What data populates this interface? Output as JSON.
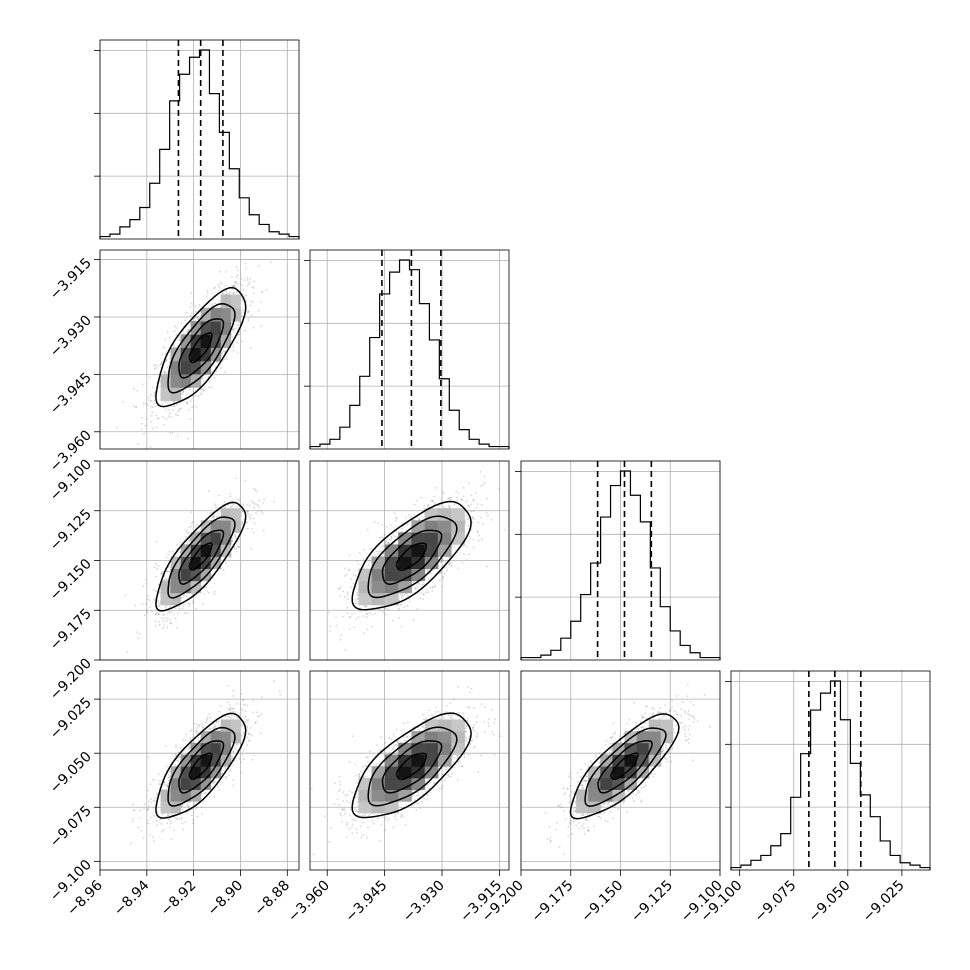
{
  "chart_data": {
    "type": "corner",
    "grid": true,
    "n_params": 4,
    "params": [
      {
        "center": -8.917,
        "sigma": 0.0095,
        "range": [
          -8.96,
          -8.875
        ],
        "ticks": [
          -8.96,
          -8.94,
          -8.92,
          -8.9,
          -8.88
        ],
        "tick_labels": [
          "−8.96",
          "−8.94",
          "−8.92",
          "−8.90",
          "−8.88"
        ],
        "quantiles": [
          -8.9265,
          -8.917,
          -8.9075
        ]
      },
      {
        "center": -3.938,
        "sigma": 0.0077,
        "range": [
          -3.9645,
          -3.9125
        ],
        "ticks": [
          -3.96,
          -3.945,
          -3.93,
          -3.915
        ],
        "tick_labels": [
          "−3.960",
          "−3.945",
          "−3.930",
          "−3.915"
        ],
        "quantiles": [
          -3.9457,
          -3.938,
          -3.9303
        ]
      },
      {
        "center": -9.148,
        "sigma": 0.0135,
        "range": [
          -9.2,
          -9.1
        ],
        "ticks": [
          -9.2,
          -9.175,
          -9.15,
          -9.125,
          -9.1
        ],
        "tick_labels": [
          "−9.200",
          "−9.175",
          "−9.150",
          "−9.125",
          "−9.100"
        ],
        "quantiles": [
          -9.1615,
          -9.148,
          -9.1345
        ]
      },
      {
        "center": -9.056,
        "sigma": 0.012,
        "range": [
          -9.104,
          -9.012
        ],
        "ticks": [
          -9.1,
          -9.075,
          -9.05,
          -9.025
        ],
        "tick_labels": [
          "−9.100",
          "−9.075",
          "−9.050",
          "−9.025"
        ],
        "quantiles": [
          -9.068,
          -9.056,
          -9.044
        ]
      }
    ],
    "histograms": [
      [
        1,
        2,
        5,
        8,
        13,
        23,
        37,
        57,
        68,
        75,
        78,
        60,
        44,
        29,
        17,
        10,
        6,
        3,
        2,
        1
      ],
      [
        1,
        2,
        4,
        9,
        18,
        30,
        46,
        64,
        73,
        78,
        74,
        60,
        45,
        29,
        16,
        8,
        4,
        2,
        1,
        1
      ],
      [
        1,
        1,
        2,
        4,
        9,
        16,
        27,
        40,
        59,
        72,
        78,
        68,
        57,
        38,
        22,
        12,
        6,
        3,
        1,
        1
      ],
      [
        1,
        2,
        4,
        6,
        10,
        15,
        30,
        48,
        66,
        73,
        78,
        62,
        44,
        31,
        22,
        12,
        6,
        3,
        2,
        1
      ]
    ],
    "correlations": {
      "1-0": 0.75,
      "2-0": 0.8,
      "2-1": 0.7,
      "3-0": 0.75,
      "3-1": 0.7,
      "3-2": 0.8
    },
    "colors": {
      "axes": "#000000",
      "grid": "#b0b0b0",
      "samples": "#8c8c8c",
      "density": "#000000",
      "background": "#ffffff"
    }
  }
}
